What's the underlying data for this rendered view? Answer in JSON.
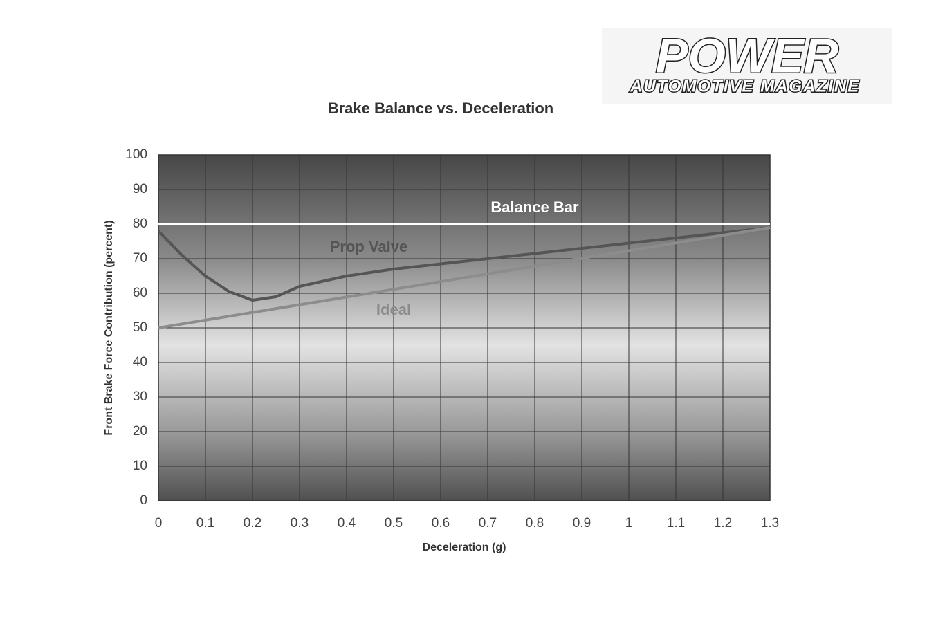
{
  "logo": {
    "title": "POWER",
    "subtitle": "AUTOMOTIVE MAGAZINE"
  },
  "chart_data": {
    "type": "line",
    "title": "Brake Balance vs. Deceleration",
    "x_label": "Deceleration (g)",
    "y_label": "Front Brake Force Contribution  (percent)",
    "xlim": [
      0,
      1.3
    ],
    "ylim": [
      0,
      100
    ],
    "xticks": [
      0,
      0.1,
      0.2,
      0.3,
      0.4,
      0.5,
      0.6,
      0.7,
      0.8,
      0.9,
      1,
      1.1,
      1.2,
      1.3
    ],
    "yticks": [
      0,
      10,
      20,
      30,
      40,
      50,
      60,
      70,
      80,
      90,
      100
    ],
    "grid": true,
    "series": [
      {
        "name": "Balance Bar",
        "color": "#ffffff",
        "x": [
          0,
          1.3
        ],
        "values": [
          80,
          80
        ]
      },
      {
        "name": "Prop Valve",
        "color": "#555555",
        "x": [
          0,
          0.05,
          0.1,
          0.15,
          0.2,
          0.25,
          0.3,
          0.4,
          0.5,
          0.6,
          0.7,
          0.8,
          0.9,
          1,
          1.1,
          1.2,
          1.3
        ],
        "values": [
          78,
          71,
          65,
          60.5,
          58,
          59,
          62,
          65,
          67,
          68.5,
          70,
          71.5,
          73,
          74.5,
          76,
          77.5,
          79
        ]
      },
      {
        "name": "Ideal",
        "color": "#8c8c8c",
        "x": [
          0,
          1.3
        ],
        "values": [
          50,
          79
        ]
      }
    ]
  }
}
